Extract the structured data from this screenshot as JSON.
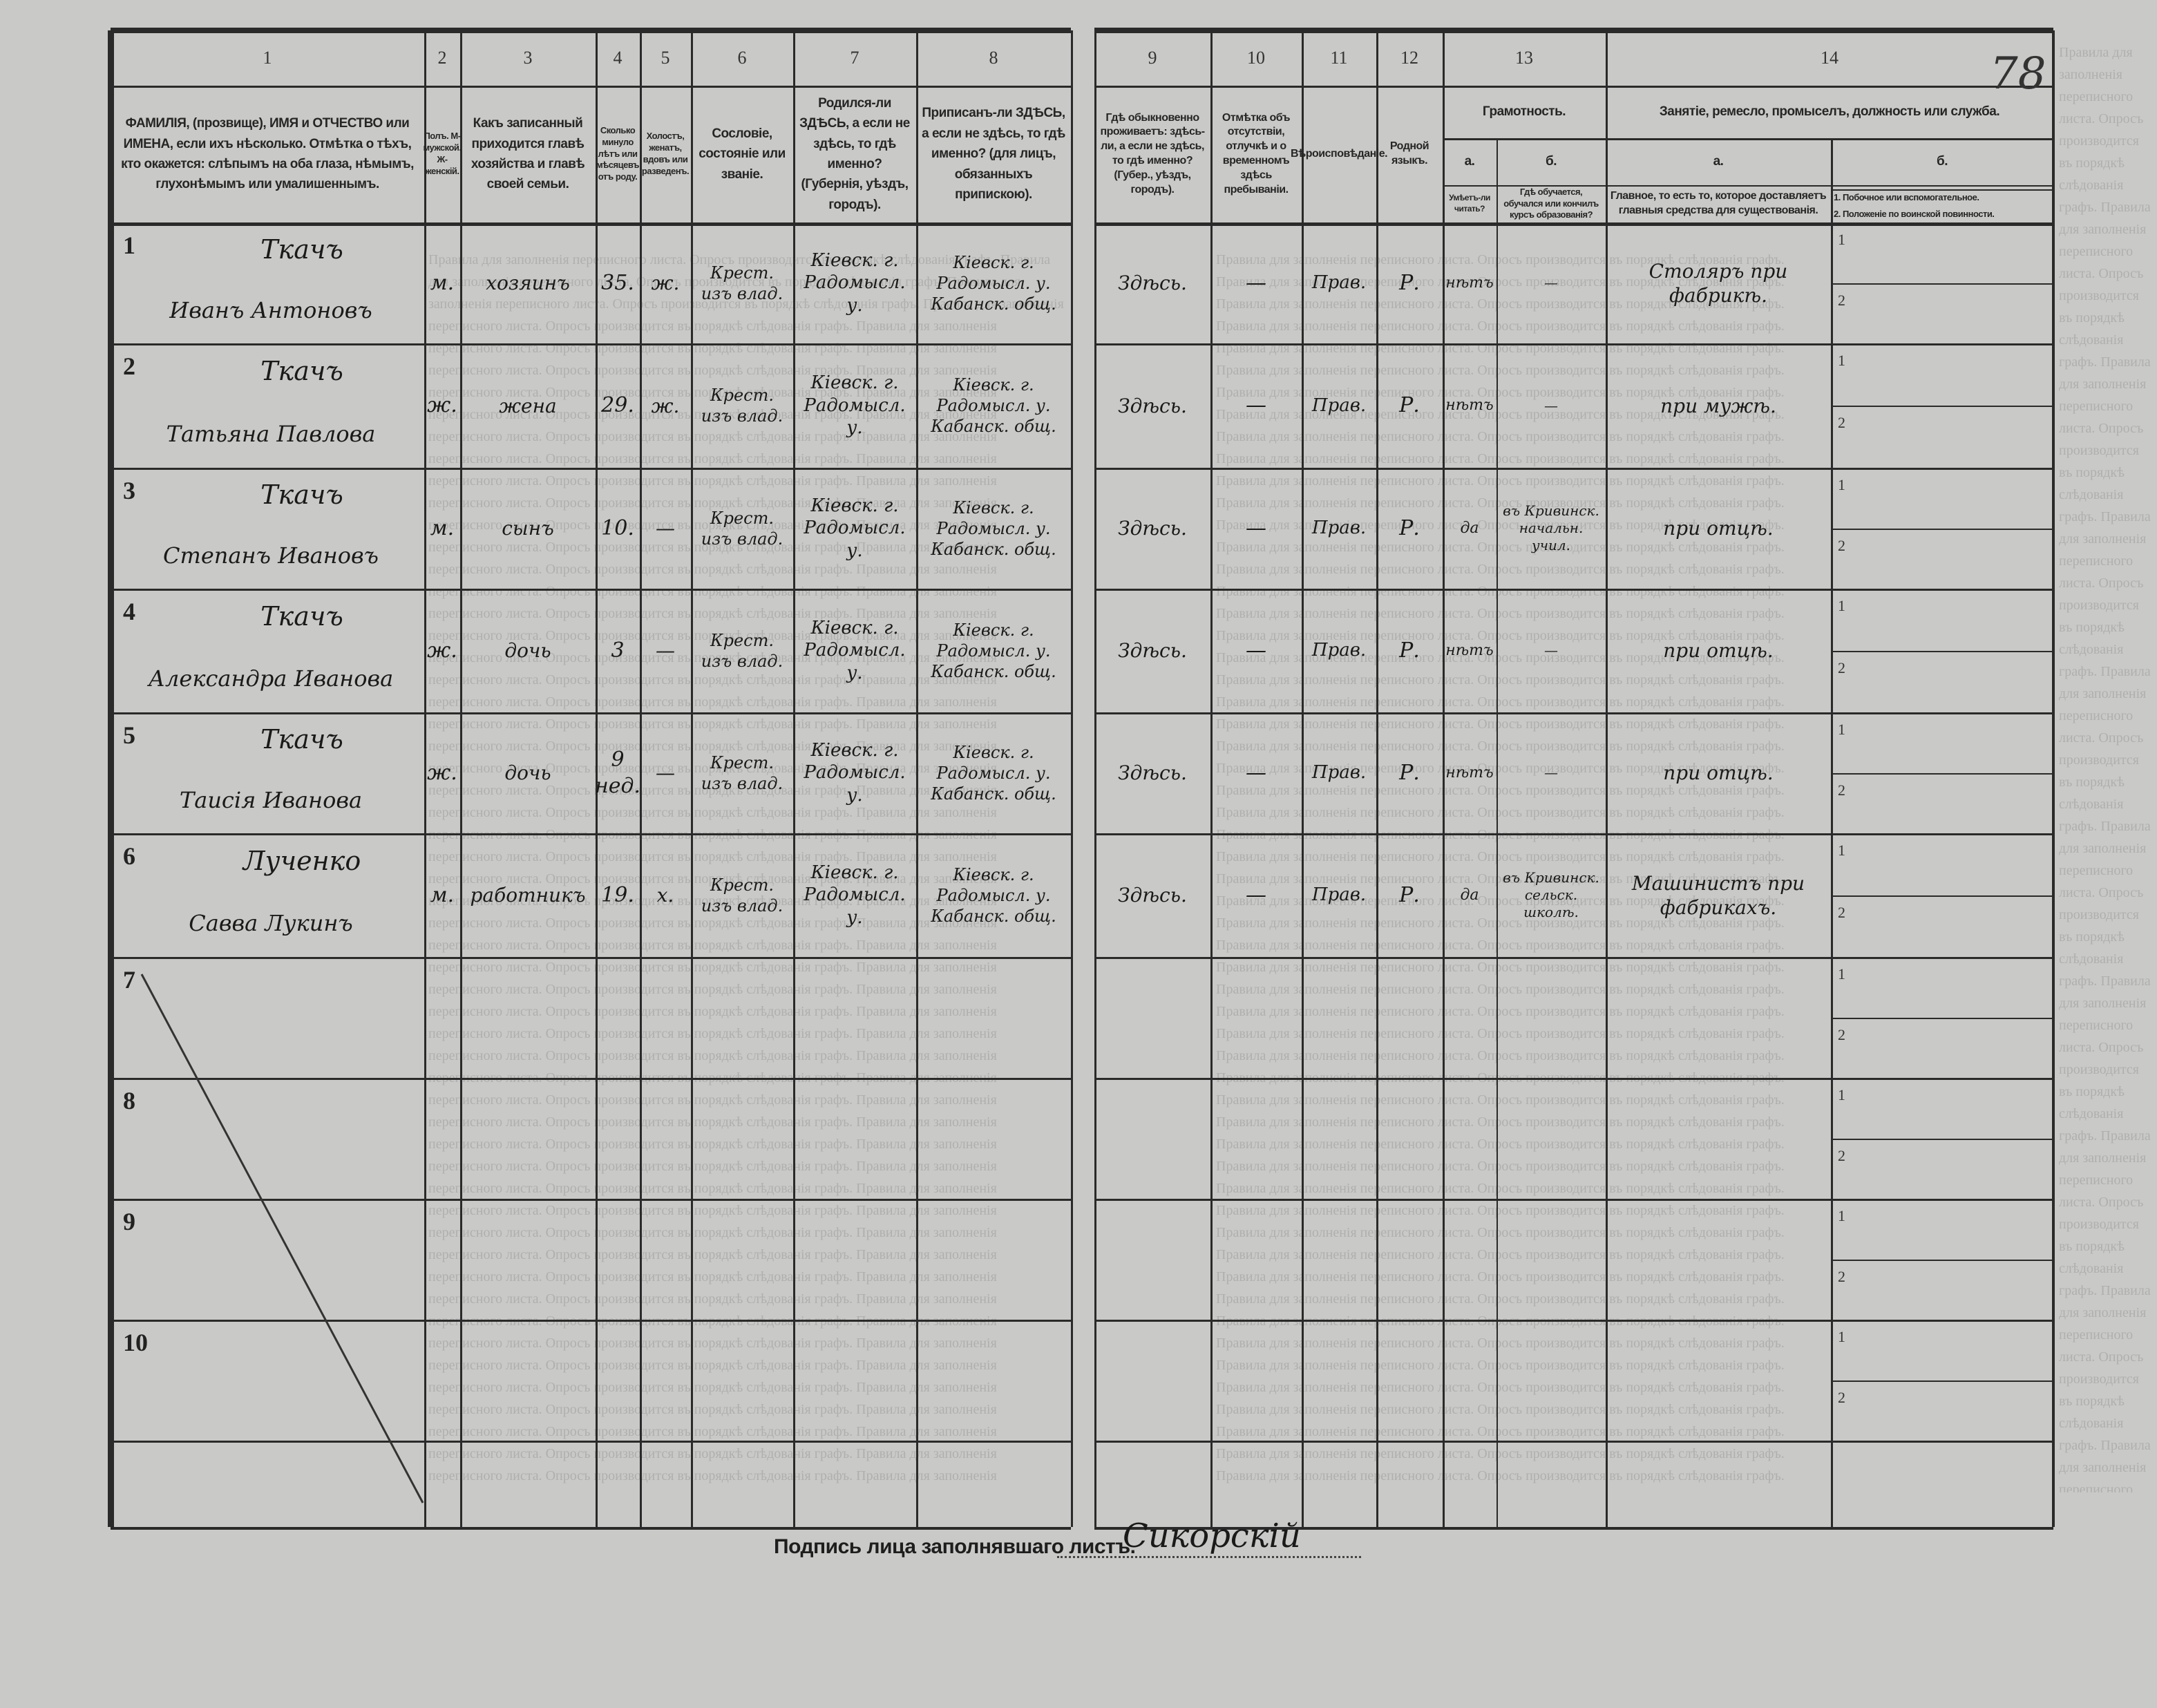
{
  "page_mark": "78",
  "column_numbers": [
    "1",
    "2",
    "3",
    "4",
    "5",
    "6",
    "7",
    "8",
    "9",
    "10",
    "11",
    "12",
    "13",
    "14"
  ],
  "headers": {
    "c1": "ФАМИЛІЯ, (прозвище), ИМЯ и ОТЧЕСТВО или ИМЕНА, если ихъ нѣсколько. Отмѣтка о тѣхъ, кто окажется: слѣпымъ на оба глаза, нѣмымъ, глухонѣмымъ или умалишеннымъ.",
    "c2": "Полъ. М-мужской. Ж-женскій.",
    "c3": "Какъ записанный приходится главѣ хозяйства и главѣ своей семьи.",
    "c4": "Сколько минуло лѣтъ или мѣсяцевъ отъ роду.",
    "c5": "Холостъ, женатъ, вдовъ или разведенъ.",
    "c6": "Сословіе, состояніе или званіе.",
    "c7": "Родился-ли ЗДѢСЬ, а если не здѣсь, то гдѣ именно? (Губернія, уѣздъ, городъ).",
    "c8": "Приписанъ-ли ЗДѢСЬ, а если не здѣсь, то гдѣ именно? (для лицъ, обязанныхъ припискою).",
    "c9": "Гдѣ обыкновенно проживаетъ: здѣсь-ли, а если не здѣсь, то гдѣ именно? (Губер., уѣздъ, городъ).",
    "c10": "Отмѣтка объ отсутствіи, отлучкѣ и о временномъ здѣсь пребываніи.",
    "c11": "Вѣроисповѣданіе.",
    "c12": "Родной языкъ.",
    "c13": "Грамотность.",
    "c13a_letter": "а.",
    "c13b_letter": "б.",
    "c13a": "Умѣетъ-ли читать?",
    "c13b": "Гдѣ обучается, обучался или кончилъ курсъ образованія?",
    "c14": "Занятіе, ремесло, промыселъ, должность или служба.",
    "c14a_letter": "а.",
    "c14b_letter": "б.",
    "c14a": "Главное, то есть то, которое доставляетъ главныя средства для существованія.",
    "c14b1": "1. Побочное или вспомогательное.",
    "c14b2": "2. Положеніе по воинской повинности."
  },
  "row_numbers": [
    "1",
    "2",
    "3",
    "4",
    "5",
    "6",
    "7",
    "8",
    "9",
    "10"
  ],
  "sub_numbers": [
    "1",
    "2"
  ],
  "rows": [
    {
      "surname": "Ткачъ",
      "name": "Иванъ Антоновъ",
      "sex": "м.",
      "relation": "хозяинъ",
      "age": "35.",
      "marital": "ж.",
      "estate": "Крест. изъ влад.",
      "born": "Кіевск. г. Радомысл. у.",
      "registered": "Кіевск. г. Радомысл. у. Кабанск. общ.",
      "residence": "Здѣсь.",
      "absence": "—",
      "religion": "Прав.",
      "language": "Р.",
      "can_read": "нѣтъ",
      "school": "—",
      "occupation": "Столяръ при фабрикѣ."
    },
    {
      "surname": "Ткачъ",
      "name": "Татьяна Павлова",
      "sex": "ж.",
      "relation": "жена",
      "age": "29.",
      "marital": "ж.",
      "estate": "Крест. изъ влад.",
      "born": "Кіевск. г. Радомысл. у.",
      "registered": "Кіевск. г. Радомысл. у. Кабанск. общ.",
      "residence": "Здѣсь.",
      "absence": "—",
      "religion": "Прав.",
      "language": "Р.",
      "can_read": "нѣтъ",
      "school": "—",
      "occupation": "при мужѣ."
    },
    {
      "surname": "Ткачъ",
      "name": "Степанъ Ивановъ",
      "sex": "м.",
      "relation": "сынъ",
      "age": "10.",
      "marital": "—",
      "estate": "Крест. изъ влад.",
      "born": "Кіевск. г. Радомысл. у.",
      "registered": "Кіевск. г. Радомысл. у. Кабанск. общ.",
      "residence": "Здѣсь.",
      "absence": "—",
      "religion": "Прав.",
      "language": "Р.",
      "can_read": "да",
      "school": "въ Кривинск. начальн. учил.",
      "occupation": "при отцѣ."
    },
    {
      "surname": "Ткачъ",
      "name": "Александра Иванова",
      "sex": "ж.",
      "relation": "дочь",
      "age": "3",
      "marital": "—",
      "estate": "Крест. изъ влад.",
      "born": "Кіевск. г. Радомысл. у.",
      "registered": "Кіевск. г. Радомысл. у. Кабанск. общ.",
      "residence": "Здѣсь.",
      "absence": "—",
      "religion": "Прав.",
      "language": "Р.",
      "can_read": "нѣтъ",
      "school": "—",
      "occupation": "при отцѣ."
    },
    {
      "surname": "Ткачъ",
      "name": "Таисія Иванова",
      "sex": "ж.",
      "relation": "дочь",
      "age": "9 нед.",
      "marital": "—",
      "estate": "Крест. изъ влад.",
      "born": "Кіевск. г. Радомысл. у.",
      "registered": "Кіевск. г. Радомысл. у. Кабанск. общ.",
      "residence": "Здѣсь.",
      "absence": "—",
      "religion": "Прав.",
      "language": "Р.",
      "can_read": "нѣтъ",
      "school": "—",
      "occupation": "при отцѣ."
    },
    {
      "surname": "Лученко",
      "name": "Савва Лукинъ",
      "sex": "м.",
      "relation": "работникъ",
      "age": "19.",
      "marital": "х.",
      "estate": "Крест. изъ влад.",
      "born": "Кіевск. г. Радомысл. у.",
      "registered": "Кіевск. г. Радомысл. у. Кабанск. общ.",
      "residence": "Здѣсь.",
      "absence": "—",
      "religion": "Прав.",
      "language": "Р.",
      "can_read": "да",
      "school": "въ Кривинск. сельск. школѣ.",
      "occupation": "Машинистъ при фабрикахъ."
    }
  ],
  "signature": {
    "label": "Подпись лица заполнявшаго листъ.",
    "value": "Сикорскій"
  }
}
